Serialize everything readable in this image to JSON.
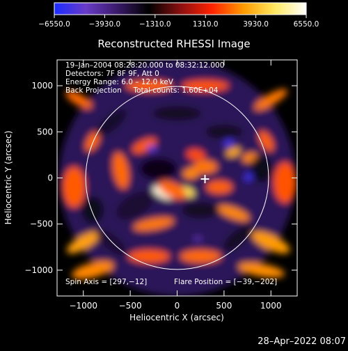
{
  "chart_data": {
    "type": "heatmap",
    "title": "Reconstructed RHESSI Image",
    "xlabel": "Heliocentric X (arcsec)",
    "ylabel": "Heliocentric Y (arcsec)",
    "xlim": [
      -1280,
      1280
    ],
    "ylim": [
      -1280,
      1280
    ],
    "x_ticks": [
      -1000,
      -500,
      0,
      500,
      1000
    ],
    "y_ticks": [
      -1000,
      -500,
      0,
      500,
      1000
    ],
    "x_tick_labels": [
      "−1000",
      "−500",
      "0",
      "500",
      "1000"
    ],
    "y_tick_labels": [
      "−1000",
      "−500",
      "0",
      "500",
      "1000"
    ],
    "colorbar": {
      "range": [
        -6550,
        6550
      ],
      "tick_values": [
        -6550,
        -3930,
        -1310,
        1310,
        3930,
        6550
      ],
      "tick_labels": [
        "−6550.0",
        "−3930.0",
        "−1310.0",
        "1310.0",
        "3930.0",
        "6550.0"
      ],
      "colors": [
        "#1a2cff",
        "#6a3cc8",
        "#3a1a6a",
        "#000000",
        "#8a1010",
        "#ff2200",
        "#ff9a00",
        "#ffe860",
        "#ffffff"
      ]
    },
    "solar_disk_radius_arcsec": 975,
    "flare_marker": {
      "x": 297,
      "y": -12
    },
    "grid": false,
    "info_lines": [
      "19–Jan–2004 08:28:20.000 to 08:32:12.000",
      "Detectors: 7F 8F 9F, Att 0",
      "Energy Range: 6.0 – 12.0 keV",
      "Back Projection     Total counts: 1.60E+04"
    ],
    "footer_left": "Spin Axis = [297,−12]",
    "footer_right": "Flare Position = [−39,−202]",
    "blobs": [
      {
        "x": -150,
        "y": -160,
        "rx": 120,
        "ry": 55,
        "rot": -25,
        "value": 6200
      },
      {
        "x": 100,
        "y": -150,
        "rx": 90,
        "ry": 50,
        "rot": -20,
        "value": 4800
      },
      {
        "x": -50,
        "y": -130,
        "rx": 160,
        "ry": 80,
        "rot": -25,
        "value": 2600
      },
      {
        "x": 150,
        "y": 50,
        "rx": 90,
        "ry": 60,
        "rot": 10,
        "value": 3000
      },
      {
        "x": 300,
        "y": 120,
        "rx": 130,
        "ry": 70,
        "rot": 0,
        "value": 2800
      },
      {
        "x": 200,
        "y": 250,
        "rx": 100,
        "ry": 60,
        "rot": -10,
        "value": 2200
      },
      {
        "x": 600,
        "y": 280,
        "rx": 80,
        "ry": 45,
        "rot": 20,
        "value": 3600
      },
      {
        "x": 780,
        "y": 220,
        "rx": 90,
        "ry": 50,
        "rot": 10,
        "value": 3000
      },
      {
        "x": 450,
        "y": -100,
        "rx": 140,
        "ry": 70,
        "rot": 0,
        "value": 2500
      },
      {
        "x": 600,
        "y": -380,
        "rx": 180,
        "ry": 60,
        "rot": -20,
        "value": 3000
      },
      {
        "x": -350,
        "y": 350,
        "rx": 140,
        "ry": 60,
        "rot": 25,
        "value": 2400
      },
      {
        "x": -600,
        "y": 80,
        "rx": 80,
        "ry": 200,
        "rot": 10,
        "value": 2600
      },
      {
        "x": -250,
        "y": -500,
        "rx": 220,
        "ry": 60,
        "rot": 10,
        "value": 2800
      },
      {
        "x": -1000,
        "y": -700,
        "rx": 200,
        "ry": 70,
        "rot": 30,
        "value": 3400
      },
      {
        "x": -900,
        "y": -1000,
        "rx": 230,
        "ry": 80,
        "rot": 15,
        "value": 3000
      },
      {
        "x": 1000,
        "y": -700,
        "rx": 220,
        "ry": 80,
        "rot": -25,
        "value": 3300
      },
      {
        "x": 900,
        "y": -1000,
        "rx": 250,
        "ry": 70,
        "rot": -10,
        "value": 3100
      },
      {
        "x": -1050,
        "y": 850,
        "rx": 160,
        "ry": 60,
        "rot": -30,
        "value": 2600
      },
      {
        "x": 1000,
        "y": 850,
        "rx": 200,
        "ry": 60,
        "rot": 30,
        "value": 2800
      },
      {
        "x": -900,
        "y": 400,
        "rx": 120,
        "ry": 60,
        "rot": 60,
        "value": 2600
      },
      {
        "x": 950,
        "y": 400,
        "rx": 120,
        "ry": 60,
        "rot": -60,
        "value": 2500
      },
      {
        "x": -300,
        "y": 1000,
        "rx": 250,
        "ry": 60,
        "rot": 0,
        "value": 2500
      },
      {
        "x": 300,
        "y": 1000,
        "rx": 250,
        "ry": 60,
        "rot": 0,
        "value": 2300
      },
      {
        "x": -1100,
        "y": -100,
        "rx": 120,
        "ry": 220,
        "rot": 0,
        "value": 2400
      },
      {
        "x": 1150,
        "y": -50,
        "rx": 120,
        "ry": 220,
        "rot": 0,
        "value": 2300
      },
      {
        "x": -300,
        "y": -850,
        "rx": 220,
        "ry": 70,
        "rot": 0,
        "value": 2400
      },
      {
        "x": 250,
        "y": -850,
        "rx": 220,
        "ry": 70,
        "rot": 0,
        "value": 2600
      },
      {
        "x": -270,
        "y": 320,
        "rx": 55,
        "ry": 35,
        "rot": -20,
        "value": -5200
      },
      {
        "x": 550,
        "y": 380,
        "rx": 60,
        "ry": 40,
        "rot": 20,
        "value": -5600
      },
      {
        "x": 780,
        "y": 20,
        "rx": 70,
        "ry": 40,
        "rot": 30,
        "value": -5800
      },
      {
        "x": 220,
        "y": -660,
        "rx": 50,
        "ry": 30,
        "rot": 0,
        "value": -4300
      },
      {
        "x": -450,
        "y": -300,
        "rx": 220,
        "ry": 120,
        "rot": 30,
        "value": -2400
      },
      {
        "x": 250,
        "y": -350,
        "rx": 200,
        "ry": 90,
        "rot": 0,
        "value": -2200
      },
      {
        "x": -200,
        "y": 100,
        "rx": 200,
        "ry": 120,
        "rot": 0,
        "value": -2000
      },
      {
        "x": 500,
        "y": 500,
        "rx": 200,
        "ry": 80,
        "rot": 0,
        "value": -2200
      },
      {
        "x": -700,
        "y": 600,
        "rx": 200,
        "ry": 80,
        "rot": 40,
        "value": -2300
      },
      {
        "x": -700,
        "y": -700,
        "rx": 200,
        "ry": 80,
        "rot": -40,
        "value": -2400
      },
      {
        "x": 650,
        "y": -650,
        "rx": 200,
        "ry": 80,
        "rot": 40,
        "value": -2200
      },
      {
        "x": 900,
        "y": 100,
        "rx": 120,
        "ry": 150,
        "rot": 0,
        "value": -2100
      },
      {
        "x": -900,
        "y": -350,
        "rx": 120,
        "ry": 150,
        "rot": 0,
        "value": -2100
      },
      {
        "x": 0,
        "y": 700,
        "rx": 260,
        "ry": 80,
        "rot": 0,
        "value": -2200
      }
    ]
  },
  "timestamp": "28–Apr–2022 08:07"
}
